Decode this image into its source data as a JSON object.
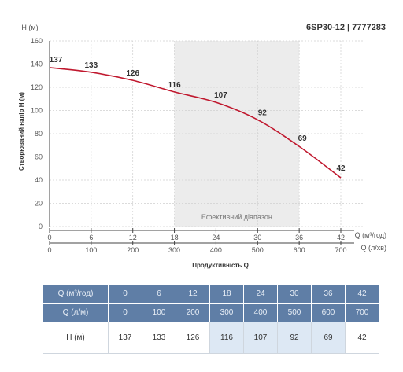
{
  "chart_data": {
    "type": "line",
    "title": "6SP30-12 | 7777283",
    "ylabel_unit": "H (м)",
    "ylabel": "Створюваний напір H (м)",
    "xlabel": "Продуктивність Q",
    "x_axis_primary": {
      "unit_label": "Q (м³/год)",
      "ticks": [
        "0",
        "6",
        "12",
        "18",
        "24",
        "30",
        "36",
        "42"
      ]
    },
    "x_axis_secondary": {
      "unit_label": "Q (л/хв)",
      "ticks": [
        "0",
        "100",
        "200",
        "300",
        "400",
        "500",
        "600",
        "700"
      ]
    },
    "y_ticks": [
      "0",
      "20",
      "40",
      "60",
      "80",
      "100",
      "120",
      "140",
      "160"
    ],
    "ylim": [
      0,
      160
    ],
    "xlim": [
      0,
      42
    ],
    "grid": true,
    "series": [
      {
        "color": "#c0182e",
        "x": [
          0,
          6,
          12,
          18,
          24,
          30,
          36,
          42
        ],
        "y": [
          137,
          133,
          126,
          116,
          107,
          92,
          69,
          42
        ],
        "labels": [
          "137",
          "133",
          "126",
          "116",
          "107",
          "92",
          "69",
          "42"
        ]
      }
    ],
    "efficient_range": {
      "x_from": 18,
      "x_to": 36,
      "label": "Ефективний діапазон"
    }
  },
  "table": {
    "rows": [
      {
        "label": "Q (м³/год)",
        "cells": [
          "0",
          "6",
          "12",
          "18",
          "24",
          "30",
          "36",
          "42"
        ]
      },
      {
        "label": "Q (л/м)",
        "cells": [
          "0",
          "100",
          "200",
          "300",
          "400",
          "500",
          "600",
          "700"
        ]
      },
      {
        "label": "H (м)",
        "cells": [
          "137",
          "133",
          "126",
          "116",
          "107",
          "92",
          "69",
          "42"
        ]
      }
    ],
    "highlight_columns": [
      3,
      4,
      5,
      6
    ]
  },
  "colors": {
    "curve": "#c0182e",
    "range_shade": "#ececec",
    "table_header": "#5f7ea6",
    "table_highlight": "#dde8f4"
  }
}
